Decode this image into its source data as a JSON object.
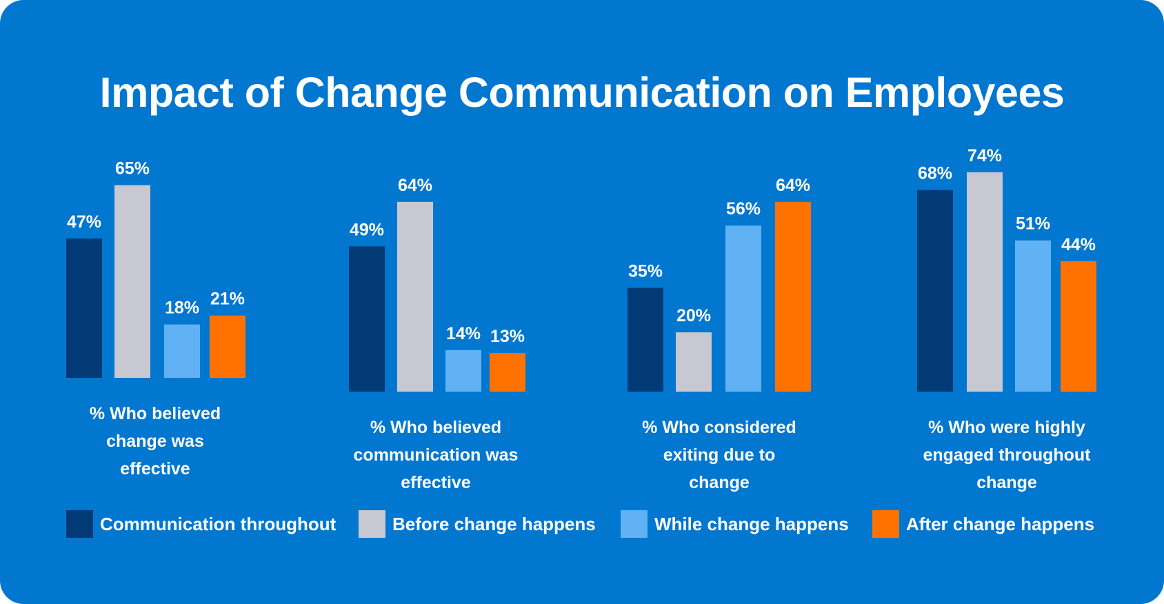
{
  "title": "Impact of Change Communication on Employees",
  "colors": {
    "background": "#0177D0",
    "text": "#FFFFFF",
    "communication_throughout": "#013A75",
    "before_change": "#C8C8D2",
    "while_change": "#61B2F5",
    "after_change": "#FF7200"
  },
  "chart_data": {
    "type": "bar",
    "title": "Impact of Change Communication on Employees",
    "value_suffix": "%",
    "categories": [
      "% Who believed change was effective",
      "% Who believed communication was effective",
      "% Who considered exiting due to change",
      "% Who were highly engaged throughout change"
    ],
    "category_lines": [
      [
        "% Who believed",
        "change was",
        "effective"
      ],
      [
        "% Who believed",
        "communication was",
        "effective"
      ],
      [
        "% Who considered",
        "exiting due to",
        "change"
      ],
      [
        "% Who were highly",
        "engaged throughout",
        "change"
      ]
    ],
    "series": [
      {
        "name": "Communication throughout",
        "color": "#013A75",
        "values": [
          47,
          49,
          35,
          68
        ]
      },
      {
        "name": "Before change happens",
        "color": "#C8C8D2",
        "values": [
          65,
          64,
          20,
          74
        ]
      },
      {
        "name": "While change happens",
        "color": "#61B2F5",
        "values": [
          18,
          14,
          56,
          51
        ]
      },
      {
        "name": "After change happens",
        "color": "#FF7200",
        "values": [
          21,
          13,
          64,
          44
        ]
      }
    ],
    "labels": [
      [
        "47%",
        "65%",
        "18%",
        "21%"
      ],
      [
        "49%",
        "64%",
        "14%",
        "13%"
      ],
      [
        "35%",
        "20%",
        "56%",
        "64%"
      ],
      [
        "68%",
        "74%",
        "51%",
        "44%"
      ]
    ],
    "legend": [
      "Communication throughout",
      "Before change happens",
      "While change happens",
      "After change happens"
    ],
    "legend_position": "bottom",
    "grid": false,
    "ylim": [
      0,
      100
    ]
  }
}
